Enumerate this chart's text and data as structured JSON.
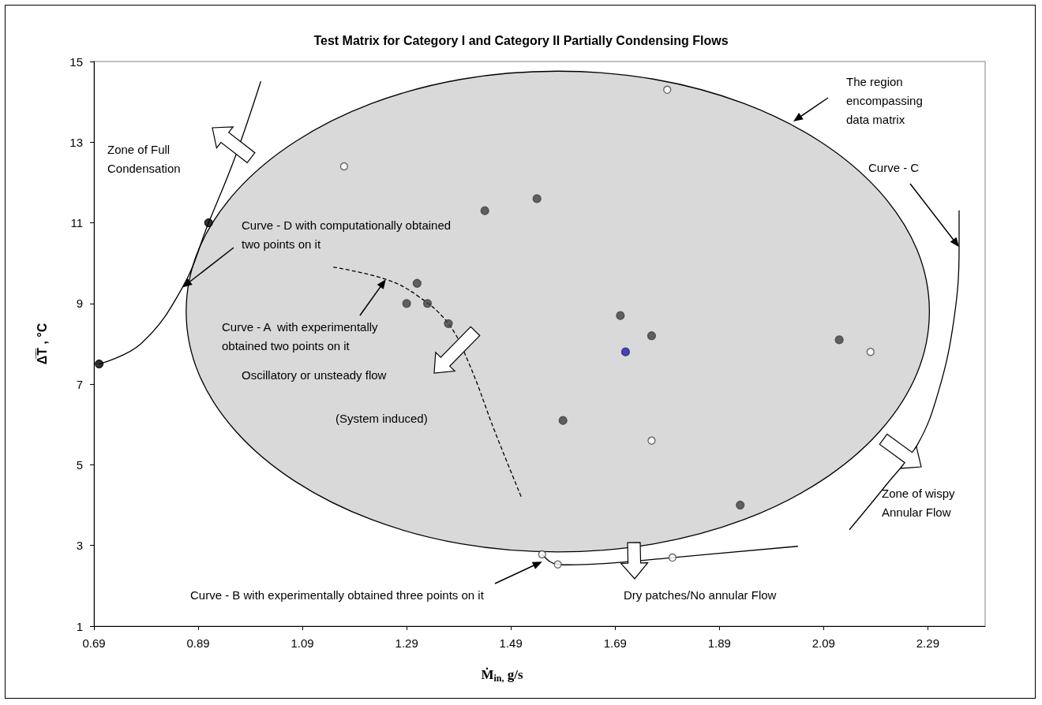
{
  "chart_data": {
    "type": "scatter",
    "title": "Test Matrix for Category I and Category II Partially Condensing Flows",
    "xlabel": "Ṁ$_{in,}$ g/s",
    "ylabel": "Δ̅T̅ , °C",
    "xlim": [
      0.69,
      2.4
    ],
    "ylim": [
      1,
      15
    ],
    "xticks": [
      0.69,
      0.89,
      1.09,
      1.29,
      1.49,
      1.69,
      1.89,
      2.09,
      2.29
    ],
    "yticks": [
      1,
      3,
      5,
      7,
      9,
      11,
      13,
      15
    ],
    "grid": false,
    "series": [
      {
        "type": "area",
        "color": "#d9d9d9",
        "x": [
          2.293,
          2.269,
          2.197,
          2.084,
          1.937,
          1.765,
          1.58,
          1.395,
          1.223,
          1.076,
          0.963,
          0.891,
          0.867,
          0.891,
          0.963,
          1.076,
          1.223,
          1.395,
          1.58,
          1.765,
          1.937,
          2.084,
          2.197,
          2.269
        ],
        "values": [
          8.8,
          10.34,
          11.78,
          13.01,
          13.96,
          14.56,
          14.76,
          14.56,
          13.96,
          13.01,
          11.78,
          10.34,
          8.8,
          7.26,
          5.82,
          4.59,
          3.64,
          3.04,
          2.84,
          3.04,
          3.64,
          4.59,
          5.82,
          7.26
        ]
      },
      {
        "type": "line",
        "color": "#000000",
        "line_style": "solid",
        "marker": "none",
        "x": [
          0.7,
          0.78,
          0.86,
          0.91,
          0.96,
          1.01
        ],
        "values": [
          7.5,
          8.0,
          9.4,
          11.0,
          12.6,
          14.5
        ]
      },
      {
        "type": "scatter",
        "color": "#000000",
        "marker": "circle",
        "x": [
          0.7,
          0.91
        ],
        "values": [
          7.5,
          11.0
        ]
      },
      {
        "type": "line",
        "color": "#000000",
        "line_style": "dashed",
        "marker": "none",
        "x": [
          1.15,
          1.25,
          1.31,
          1.37,
          1.41,
          1.46,
          1.51
        ],
        "values": [
          9.9,
          9.6,
          9.2,
          8.5,
          7.5,
          5.8,
          4.2
        ]
      },
      {
        "type": "line",
        "color": "#000000",
        "line_style": "solid",
        "marker": "none",
        "x": [
          1.55,
          1.565,
          1.58,
          1.6,
          1.69,
          1.8,
          2.04
        ],
        "values": [
          2.78,
          2.6,
          2.53,
          2.52,
          2.57,
          2.7,
          2.98
        ]
      },
      {
        "color": "#ffffff",
        "marker": "circle",
        "x": [
          1.55,
          1.58,
          1.8
        ],
        "values": [
          2.78,
          2.53,
          2.7
        ]
      },
      {
        "type": "line",
        "color": "#000000",
        "line_style": "solid",
        "marker": "none",
        "x": [
          2.35,
          2.35,
          2.34,
          2.31,
          2.27,
          2.21,
          2.14
        ],
        "values": [
          11.3,
          10.4,
          8.6,
          6.8,
          5.5,
          4.5,
          3.4
        ]
      },
      {
        "color": "#404040",
        "marker": "circle",
        "x": [
          1.44,
          1.54,
          1.31,
          1.29,
          1.33,
          1.37,
          1.7,
          1.76,
          1.59,
          2.12,
          1.93
        ],
        "values": [
          11.3,
          11.6,
          9.5,
          9.0,
          9.0,
          8.5,
          8.7,
          8.2,
          6.1,
          8.1,
          4.0
        ]
      },
      {
        "color": "#ffffff",
        "marker": "circle",
        "x": [
          1.17,
          1.79,
          1.76,
          2.18
        ],
        "values": [
          12.4,
          14.3,
          5.6,
          7.8
        ]
      },
      {
        "color": "#1f1f9f",
        "marker": "circle",
        "x": [
          1.71
        ],
        "values": [
          7.8
        ]
      }
    ],
    "annotations": [
      "Zone of Full Condensation",
      {
        "text": "Curve - D with computationally obtained two points on it",
        "x": 0.86,
        "y": 9.4
      },
      {
        "text": "Curve - A  with experimentally obtained two points on it",
        "x": 1.25,
        "y": 9.6
      },
      "Oscillatory or unsteady flow",
      "(System induced)",
      "The region encompassing data matrix",
      {
        "text": "Curve - C",
        "x": 2.35,
        "y": 10.4
      },
      "Zone of wispy Annular Flow",
      {
        "text": "Curve - B with experimentally obtained three points on it",
        "x": 1.55,
        "y": 2.6
      },
      "Dry patches/No annular Flow"
    ]
  }
}
